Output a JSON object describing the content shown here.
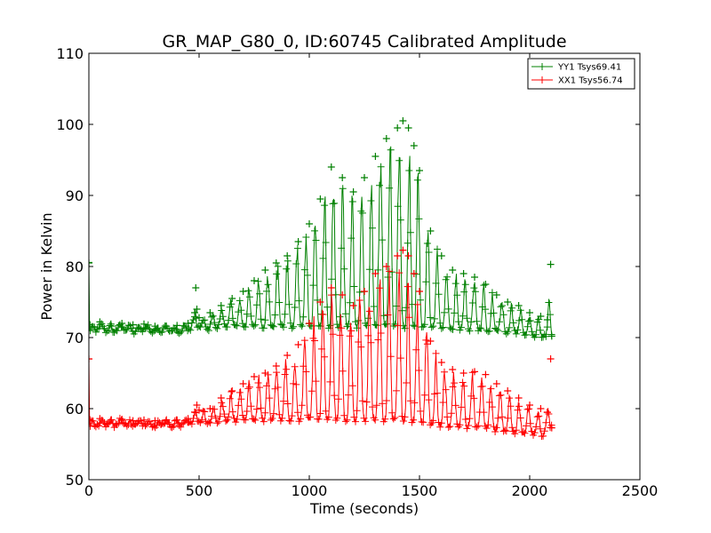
{
  "chart_data": {
    "type": "line",
    "title": "GR_MAP_G80_0, ID:60745 Calibrated Amplitude",
    "xlabel": "Time (seconds)",
    "ylabel": "Power in Kelvin",
    "xlim": [
      0,
      2500
    ],
    "ylim": [
      50,
      110
    ],
    "xticks": [
      0,
      500,
      1000,
      1500,
      2000,
      2500
    ],
    "yticks": [
      50,
      60,
      70,
      80,
      90,
      100,
      110
    ],
    "grid": false,
    "legend_position": "top-right",
    "marker": "+",
    "series": [
      {
        "name": "YY1 Tsys69.41",
        "color": "#008000",
        "x": [
          0,
          2,
          5,
          50,
          100,
          150,
          200,
          250,
          300,
          350,
          400,
          450,
          480,
          485,
          490,
          500,
          550,
          600,
          650,
          700,
          750,
          800,
          850,
          900,
          950,
          1000,
          1050,
          1100,
          1150,
          1200,
          1250,
          1300,
          1350,
          1400,
          1425,
          1450,
          1475,
          1500,
          1550,
          1600,
          1650,
          1700,
          1750,
          1800,
          1850,
          1900,
          1950,
          2000,
          2050,
          2080,
          2095,
          2100
        ],
        "base": [
          80.5,
          71,
          70.6,
          71.2,
          70.8,
          71.1,
          70.7,
          71.0,
          70.8,
          70.9,
          70.7,
          71.0,
          71.2,
          71.3,
          71.2,
          71.5,
          71.2,
          71.5,
          71.5,
          71.5,
          71.6,
          71.6,
          71.5,
          71.5,
          71.6,
          71.6,
          71.6,
          71.6,
          71.5,
          71.6,
          71.7,
          71.6,
          71.6,
          71.6,
          71.5,
          71.6,
          71.6,
          71.6,
          71.4,
          71.4,
          71.3,
          71.2,
          71.2,
          71.0,
          70.9,
          70.8,
          70.6,
          70.4,
          70.2,
          70.1,
          70.3,
          70.5
        ],
        "values": [
          80.5,
          71.5,
          71.8,
          72.2,
          71.9,
          72.0,
          71.8,
          71.9,
          71.6,
          71.6,
          71.7,
          72.0,
          73.5,
          77.0,
          74.0,
          72.8,
          73.5,
          74.5,
          75.5,
          76.5,
          78.0,
          79.5,
          80.5,
          81.5,
          83.5,
          86.0,
          89.5,
          94.0,
          92.5,
          90.5,
          92.5,
          95.5,
          98.0,
          99.5,
          100.5,
          99.5,
          97.0,
          93.5,
          85.0,
          81.5,
          79.5,
          79.0,
          78.5,
          77.5,
          76.0,
          75.0,
          74.5,
          73.5,
          73.0,
          72.5,
          80.3,
          70.2
        ]
      },
      {
        "name": "XX1 Tsys56.74",
        "color": "#ff0000",
        "x": [
          0,
          2,
          5,
          50,
          100,
          150,
          200,
          250,
          300,
          350,
          400,
          450,
          480,
          490,
          500,
          550,
          600,
          650,
          700,
          750,
          800,
          850,
          900,
          950,
          1000,
          1050,
          1100,
          1150,
          1200,
          1250,
          1300,
          1350,
          1400,
          1425,
          1450,
          1475,
          1500,
          1550,
          1600,
          1650,
          1700,
          1750,
          1800,
          1850,
          1900,
          1950,
          2000,
          2050,
          2080,
          2095,
          2100
        ],
        "base": [
          67.0,
          57.8,
          57.5,
          57.8,
          57.6,
          57.7,
          57.6,
          57.7,
          57.6,
          57.7,
          57.6,
          57.8,
          58.0,
          58.1,
          58.0,
          58.1,
          58.2,
          58.3,
          58.4,
          58.4,
          58.4,
          58.5,
          58.5,
          58.5,
          58.5,
          58.5,
          58.5,
          58.5,
          58.4,
          58.4,
          58.4,
          58.3,
          58.3,
          58.2,
          58.2,
          58.1,
          58.0,
          57.8,
          57.7,
          57.6,
          57.5,
          57.3,
          57.2,
          57.0,
          56.8,
          56.6,
          56.5,
          56.3,
          56.1,
          57.3,
          57.5
        ],
        "values": [
          67.0,
          58.5,
          58.4,
          58.6,
          58.4,
          58.5,
          58.3,
          58.4,
          58.3,
          58.3,
          58.4,
          58.6,
          59.5,
          60.5,
          59.8,
          60.0,
          61.5,
          62.5,
          63.5,
          64.5,
          65.0,
          66.0,
          67.5,
          69.0,
          72.0,
          75.0,
          77.0,
          76.0,
          74.5,
          76.5,
          79.0,
          80.0,
          81.5,
          82.3,
          81.5,
          79.0,
          76.5,
          69.5,
          66.5,
          65.5,
          65.0,
          65.2,
          64.8,
          63.5,
          62.5,
          61.5,
          60.5,
          60.0,
          59.5,
          67.0,
          57.3
        ]
      }
    ]
  }
}
